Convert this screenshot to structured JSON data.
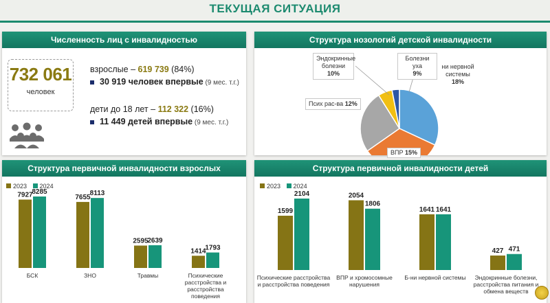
{
  "page_title": "ТЕКУЩАЯ СИТУАЦИЯ",
  "colors": {
    "accent": "#1c8a6f",
    "gold": "#8a7a12",
    "bar2023": "#857415",
    "bar2024": "#17957a"
  },
  "panel1": {
    "title": "Численность лиц с инвалидностью",
    "total": "732 061",
    "total_unit": "человек",
    "adults_prefix": "взрослые – ",
    "adults_value": "619 739",
    "adults_pct": " (84%)",
    "adults_first": "30 919 человек впервые",
    "adults_first_note": " (9 мес. т.г.)",
    "children_prefix": "дети до 18 лет – ",
    "children_value": "112 322",
    "children_pct": " (16%)",
    "children_first": "11 449 детей впервые",
    "children_first_note": " (9 мес. т.г.)",
    "icon": "people-group-icon"
  },
  "panel2": {
    "title": "Структура нозологий детской инвалидности",
    "labels": {
      "endocrine": "Эндокринные болезни",
      "endocrine_pct": "10%",
      "ear": "Болезни уха",
      "ear_pct": "9%",
      "nerve": "ни нервной системы",
      "nerve_pct": "18%",
      "psych": "Псих рас-ва",
      "psych_pct": "12%",
      "vpr": "ВПР",
      "vpr_pct": "15%"
    }
  },
  "chart_data": [
    {
      "type": "pie",
      "title": "Структура нозологий детской инвалидности",
      "slices": [
        {
          "label": "ни нервной системы",
          "value": 18,
          "color": "#5aa2d8"
        },
        {
          "label": "ВПР",
          "value": 15,
          "color": "#ea7a33"
        },
        {
          "label": "Псих рас-ва",
          "value": 12,
          "color": "#a7a7a7"
        },
        {
          "label": "Эндокринные болезни",
          "value": 10,
          "color": "#f1bf12"
        },
        {
          "label": "Болезни уха",
          "value": 9,
          "color": "#2d57a5"
        }
      ],
      "visible_angles_deg": [
        [
          0,
          115
        ],
        [
          115,
          235
        ],
        [
          235,
          328
        ],
        [
          328,
          349
        ],
        [
          349,
          360
        ]
      ]
    },
    {
      "type": "bar",
      "title": "Структура первичной инвалидности взрослых",
      "categories": [
        "БСК",
        "ЗНО",
        "Травмы",
        "Психические расстройства и расстройства поведения"
      ],
      "series": [
        {
          "name": "2023",
          "values": [
            7927,
            7655,
            2595,
            1414
          ]
        },
        {
          "name": "2024",
          "values": [
            8285,
            8113,
            2639,
            1793
          ]
        }
      ],
      "legend": "top-left"
    },
    {
      "type": "bar",
      "title": "Структура первичной инвалидности детей",
      "categories": [
        "Психические расстройства и расстройства поведения",
        "ВПР и хромосомные нарушения",
        "Б-ни нервной системы",
        "Эндокринные болезни, расстройства питания и обмена веществ"
      ],
      "series": [
        {
          "name": "2023",
          "values": [
            1599,
            2054,
            1641,
            427
          ]
        },
        {
          "name": "2024",
          "values": [
            2104,
            1806,
            1641,
            471
          ]
        }
      ],
      "legend": "top-left"
    }
  ]
}
